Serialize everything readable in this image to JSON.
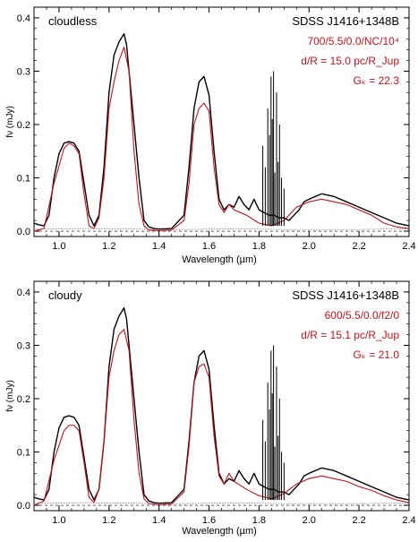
{
  "figure": {
    "xlabel": "Wavelength (µm)",
    "ylabel": "fν (mJy)",
    "colors": {
      "observed": "#000000",
      "model": "#c0141c",
      "noise": "#777777",
      "labels_red": "#c0141c"
    }
  },
  "chart_data": [
    {
      "type": "line",
      "panel": "top",
      "title": "cloudless",
      "object": "SDSS J1416+1348B",
      "model_params": "700/5.5/0.0/NC/10⁴",
      "scaling": "d/R = 15.0 pc/Rⱼᵤₚ",
      "scaling_text": "d/R = 15.0 pc/R_Jup",
      "gk": "Gₖ = 22.3",
      "xlabel": "Wavelength (µm)",
      "ylabel": "fν (mJy)",
      "xlim": [
        0.9,
        2.4
      ],
      "ylim": [
        -0.01,
        0.42
      ],
      "xticks": [
        "1.0",
        "1.2",
        "1.4",
        "1.6",
        "1.8",
        "2.0",
        "2.2",
        "2.4"
      ],
      "yticks": [
        "0.0",
        "0.1",
        "0.2",
        "0.3",
        "0.4"
      ],
      "series": [
        {
          "role": "observed",
          "x": [
            0.9,
            0.92,
            0.94,
            0.96,
            0.98,
            1.0,
            1.02,
            1.04,
            1.06,
            1.08,
            1.1,
            1.12,
            1.14,
            1.16,
            1.18,
            1.2,
            1.22,
            1.24,
            1.26,
            1.27,
            1.28,
            1.3,
            1.32,
            1.34,
            1.36,
            1.38,
            1.4,
            1.45,
            1.5,
            1.52,
            1.54,
            1.56,
            1.58,
            1.6,
            1.62,
            1.64,
            1.66,
            1.68,
            1.7,
            1.72,
            1.74,
            1.76,
            1.78,
            1.8,
            1.82,
            1.84,
            1.86,
            1.88,
            1.9,
            1.92,
            1.94,
            1.96,
            1.98,
            2.0,
            2.05,
            2.1,
            2.15,
            2.2,
            2.25,
            2.3,
            2.35,
            2.4
          ],
          "y": [
            0.015,
            0.012,
            0.01,
            0.03,
            0.1,
            0.145,
            0.165,
            0.168,
            0.165,
            0.15,
            0.09,
            0.03,
            0.01,
            0.03,
            0.12,
            0.26,
            0.33,
            0.355,
            0.37,
            0.35,
            0.3,
            0.2,
            0.1,
            0.02,
            0.008,
            0.005,
            0.004,
            0.005,
            0.03,
            0.12,
            0.23,
            0.28,
            0.29,
            0.255,
            0.15,
            0.06,
            0.04,
            0.05,
            0.045,
            0.065,
            0.05,
            0.04,
            0.06,
            0.04,
            0.035,
            0.03,
            0.03,
            0.025,
            0.025,
            0.02,
            0.03,
            0.04,
            0.055,
            0.06,
            0.07,
            0.065,
            0.055,
            0.045,
            0.035,
            0.025,
            0.015,
            0.01
          ]
        },
        {
          "role": "model",
          "x": [
            0.9,
            0.94,
            0.98,
            1.02,
            1.04,
            1.06,
            1.08,
            1.1,
            1.12,
            1.14,
            1.16,
            1.18,
            1.2,
            1.22,
            1.24,
            1.26,
            1.28,
            1.3,
            1.32,
            1.34,
            1.36,
            1.4,
            1.45,
            1.5,
            1.52,
            1.54,
            1.56,
            1.58,
            1.6,
            1.62,
            1.64,
            1.66,
            1.68,
            1.7,
            1.75,
            1.8,
            1.85,
            1.9,
            1.95,
            2.0,
            2.05,
            2.1,
            2.15,
            2.2,
            2.25,
            2.3,
            2.35,
            2.4
          ],
          "y": [
            0.0,
            0.005,
            0.09,
            0.155,
            0.165,
            0.16,
            0.145,
            0.07,
            0.01,
            0.005,
            0.025,
            0.1,
            0.23,
            0.28,
            0.32,
            0.345,
            0.3,
            0.15,
            0.05,
            0.01,
            0.002,
            0.001,
            0.002,
            0.02,
            0.09,
            0.2,
            0.23,
            0.24,
            0.225,
            0.12,
            0.05,
            0.035,
            0.05,
            0.04,
            0.03,
            0.015,
            0.01,
            0.02,
            0.045,
            0.055,
            0.06,
            0.055,
            0.05,
            0.04,
            0.03,
            0.015,
            0.008,
            0.005
          ]
        },
        {
          "role": "noise",
          "x": [
            0.9,
            1.0,
            1.1,
            1.2,
            1.3,
            1.4,
            1.5,
            1.6,
            1.7,
            1.8,
            1.9,
            2.0,
            2.1,
            2.2,
            2.3,
            2.4
          ],
          "y": [
            0.004,
            0.004,
            0.005,
            0.004,
            0.004,
            0.003,
            0.003,
            0.004,
            0.004,
            0.004,
            0.003,
            0.003,
            0.003,
            0.003,
            0.004,
            0.004
          ]
        }
      ],
      "telluric_spikes": {
        "x": [
          1.815,
          1.825,
          1.835,
          1.842,
          1.848,
          1.853,
          1.858,
          1.863,
          1.87,
          1.876,
          1.882,
          1.89,
          1.9
        ],
        "y": [
          0.16,
          0.12,
          0.23,
          0.18,
          0.29,
          0.21,
          0.3,
          0.11,
          0.26,
          0.13,
          0.2,
          0.1,
          0.08
        ]
      }
    },
    {
      "type": "line",
      "panel": "bottom",
      "title": "cloudy",
      "object": "SDSS J1416+1348B",
      "model_params": "600/5.5/0.0/f2/0",
      "scaling": "d/R = 15.1 pc/Rⱼᵤₚ",
      "scaling_text": "d/R = 15.1 pc/R_Jup",
      "gk": "Gₖ = 21.0",
      "xlabel": "Wavelength (µm)",
      "ylabel": "fν (mJy)",
      "xlim": [
        0.9,
        2.4
      ],
      "ylim": [
        -0.01,
        0.42
      ],
      "xticks": [
        "1.0",
        "1.2",
        "1.4",
        "1.6",
        "1.8",
        "2.0",
        "2.2",
        "2.4"
      ],
      "yticks": [
        "0.0",
        "0.1",
        "0.2",
        "0.3",
        "0.4"
      ],
      "series": [
        {
          "role": "observed",
          "x": [
            0.9,
            0.92,
            0.94,
            0.96,
            0.98,
            1.0,
            1.02,
            1.04,
            1.06,
            1.08,
            1.1,
            1.12,
            1.14,
            1.16,
            1.18,
            1.2,
            1.22,
            1.24,
            1.26,
            1.27,
            1.28,
            1.3,
            1.32,
            1.34,
            1.36,
            1.38,
            1.4,
            1.45,
            1.5,
            1.52,
            1.54,
            1.56,
            1.58,
            1.6,
            1.62,
            1.64,
            1.66,
            1.68,
            1.7,
            1.72,
            1.74,
            1.76,
            1.78,
            1.8,
            1.82,
            1.84,
            1.86,
            1.88,
            1.9,
            1.92,
            1.94,
            1.96,
            1.98,
            2.0,
            2.05,
            2.1,
            2.15,
            2.2,
            2.25,
            2.3,
            2.35,
            2.4
          ],
          "y": [
            0.015,
            0.012,
            0.01,
            0.03,
            0.1,
            0.145,
            0.165,
            0.168,
            0.165,
            0.15,
            0.09,
            0.03,
            0.01,
            0.03,
            0.12,
            0.26,
            0.33,
            0.355,
            0.37,
            0.35,
            0.3,
            0.2,
            0.1,
            0.02,
            0.008,
            0.005,
            0.004,
            0.005,
            0.03,
            0.12,
            0.23,
            0.28,
            0.29,
            0.255,
            0.15,
            0.06,
            0.04,
            0.05,
            0.045,
            0.065,
            0.05,
            0.04,
            0.06,
            0.04,
            0.035,
            0.03,
            0.03,
            0.025,
            0.025,
            0.02,
            0.03,
            0.04,
            0.055,
            0.06,
            0.07,
            0.065,
            0.055,
            0.045,
            0.035,
            0.025,
            0.015,
            0.01
          ]
        },
        {
          "role": "model",
          "x": [
            0.9,
            0.94,
            0.98,
            1.02,
            1.04,
            1.06,
            1.08,
            1.1,
            1.12,
            1.14,
            1.16,
            1.18,
            1.2,
            1.22,
            1.24,
            1.26,
            1.28,
            1.3,
            1.32,
            1.34,
            1.36,
            1.4,
            1.45,
            1.5,
            1.52,
            1.54,
            1.56,
            1.58,
            1.6,
            1.62,
            1.64,
            1.66,
            1.68,
            1.7,
            1.75,
            1.8,
            1.85,
            1.9,
            1.95,
            2.0,
            2.05,
            2.1,
            2.15,
            2.2,
            2.25,
            2.3,
            2.35,
            2.4
          ],
          "y": [
            0.0,
            0.008,
            0.085,
            0.14,
            0.15,
            0.15,
            0.14,
            0.08,
            0.015,
            0.005,
            0.03,
            0.12,
            0.24,
            0.29,
            0.32,
            0.33,
            0.29,
            0.16,
            0.06,
            0.012,
            0.003,
            0.001,
            0.002,
            0.025,
            0.11,
            0.23,
            0.26,
            0.265,
            0.24,
            0.13,
            0.055,
            0.04,
            0.06,
            0.045,
            0.03,
            0.018,
            0.012,
            0.022,
            0.04,
            0.05,
            0.055,
            0.05,
            0.045,
            0.035,
            0.028,
            0.018,
            0.01,
            0.005
          ]
        },
        {
          "role": "noise",
          "x": [
            0.9,
            1.0,
            1.1,
            1.2,
            1.3,
            1.4,
            1.5,
            1.6,
            1.7,
            1.8,
            1.9,
            2.0,
            2.1,
            2.2,
            2.3,
            2.4
          ],
          "y": [
            0.004,
            0.004,
            0.005,
            0.004,
            0.004,
            0.003,
            0.003,
            0.004,
            0.004,
            0.004,
            0.003,
            0.003,
            0.003,
            0.003,
            0.004,
            0.004
          ]
        }
      ],
      "telluric_spikes": {
        "x": [
          1.815,
          1.825,
          1.835,
          1.842,
          1.848,
          1.853,
          1.858,
          1.863,
          1.87,
          1.876,
          1.882,
          1.89,
          1.9
        ],
        "y": [
          0.16,
          0.12,
          0.23,
          0.18,
          0.29,
          0.21,
          0.3,
          0.11,
          0.26,
          0.13,
          0.2,
          0.1,
          0.08
        ]
      }
    }
  ]
}
